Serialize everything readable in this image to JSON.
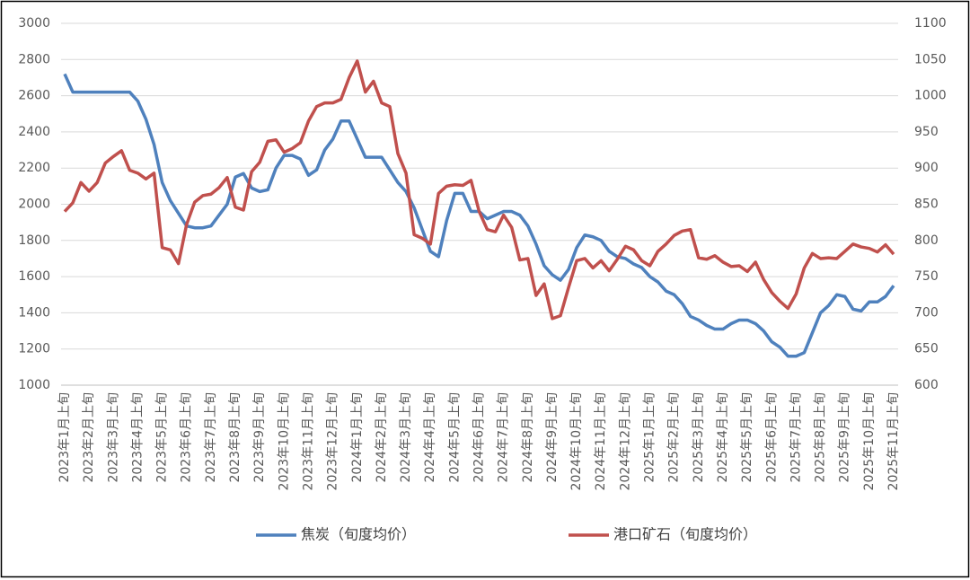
{
  "chart_data": {
    "type": "line",
    "categories": [
      "2023年1月上旬",
      null,
      null,
      "2023年2月上旬",
      null,
      null,
      "2023年3月上旬",
      null,
      null,
      "2023年4月上旬",
      null,
      null,
      "2023年5月上旬",
      null,
      null,
      "2023年6月上旬",
      null,
      null,
      "2023年7月上旬",
      null,
      null,
      "2023年8月上旬",
      null,
      null,
      "2023年9月上旬",
      null,
      null,
      "2023年10月上旬",
      null,
      null,
      "2023年11月上旬",
      null,
      null,
      "2023年12月上旬",
      null,
      null,
      "2024年1月上旬",
      null,
      null,
      "2024年2月上旬",
      null,
      null,
      "2024年3月上旬",
      null,
      null,
      "2024年4月上旬",
      null,
      null,
      "2024年5月上旬",
      null,
      null,
      "2024年6月上旬",
      null,
      null,
      "2024年7月上旬",
      null,
      null,
      "2024年8月上旬",
      null,
      null,
      "2024年9月上旬",
      null,
      null,
      "2024年10月上旬",
      null,
      null,
      "2024年11月上旬",
      null,
      null,
      "2024年12月上旬",
      null,
      null,
      "2025年1月上旬",
      null,
      null,
      "2025年2月上旬",
      null,
      null,
      "2025年3月上旬",
      null,
      null,
      "2025年4月上旬",
      null,
      null,
      "2025年5月上旬",
      null,
      null,
      "2025年6月上旬",
      null,
      null,
      "2025年7月上旬",
      null,
      null,
      "2025年8月上旬",
      null,
      null,
      "2025年9月上旬",
      null,
      null,
      "2025年10月上旬",
      null,
      null,
      "2025年11月上旬"
    ],
    "series": [
      {
        "name": "焦炭（旬度均价）",
        "color": "#4f81bd",
        "values": [
          2720,
          2620,
          2620,
          2620,
          2620,
          2620,
          2620,
          2620,
          2620,
          2570,
          2470,
          2330,
          2120,
          2020,
          1950,
          1880,
          1870,
          1870,
          1880,
          1940,
          2000,
          2150,
          2170,
          2090,
          2070,
          2080,
          2200,
          2270,
          2270,
          2250,
          2160,
          2190,
          2300,
          2360,
          2460,
          2460,
          2360,
          2260,
          2260,
          2260,
          2190,
          2120,
          2070,
          1980,
          1860,
          1740,
          1710,
          1910,
          2060,
          2060,
          1960,
          1960,
          1920,
          1940,
          1960,
          1960,
          1940,
          1880,
          1780,
          1660,
          1610,
          1580,
          1640,
          1760,
          1830,
          1820,
          1800,
          1740,
          1710,
          1700,
          1670,
          1650,
          1600,
          1570,
          1520,
          1500,
          1450,
          1380,
          1360,
          1330,
          1310,
          1310,
          1340,
          1360,
          1360,
          1340,
          1300,
          1240,
          1210,
          1160,
          1160,
          1180,
          1290,
          1400,
          1440,
          1500,
          1490,
          1420,
          1410,
          1460,
          1460,
          1490,
          1550
        ]
      },
      {
        "name": "港口矿石（旬度均价）",
        "color": "#c0504d",
        "axis": "y2",
        "values": [
          840,
          852,
          880,
          868,
          880,
          907,
          916,
          924,
          897,
          893,
          885,
          893,
          790,
          787,
          768,
          822,
          853,
          862,
          864,
          873,
          887,
          846,
          842,
          895,
          908,
          937,
          939,
          922,
          927,
          935,
          965,
          985,
          990,
          990,
          995,
          1025,
          1048,
          1005,
          1020,
          990,
          985,
          920,
          893,
          808,
          803,
          795,
          865,
          875,
          877,
          876,
          883,
          840,
          815,
          812,
          835,
          818,
          773,
          775,
          724,
          740,
          692,
          696,
          735,
          772,
          775,
          762,
          772,
          758,
          774,
          792,
          787,
          772,
          765,
          785,
          795,
          807,
          813,
          815,
          776,
          774,
          779,
          770,
          764,
          765,
          757,
          770,
          746,
          728,
          716,
          706,
          726,
          762,
          782,
          775,
          776,
          775,
          785,
          795,
          791,
          789,
          784,
          794,
          781
        ]
      }
    ],
    "ylim": [
      1000,
      3000
    ],
    "yticks": [
      1000,
      1200,
      1400,
      1600,
      1800,
      2000,
      2200,
      2400,
      2600,
      2800,
      3000
    ],
    "y2lim": [
      600,
      1100
    ],
    "y2ticks": [
      600,
      650,
      700,
      750,
      800,
      850,
      900,
      950,
      1000,
      1050,
      1100
    ],
    "grid": true,
    "legend": "bottom"
  }
}
